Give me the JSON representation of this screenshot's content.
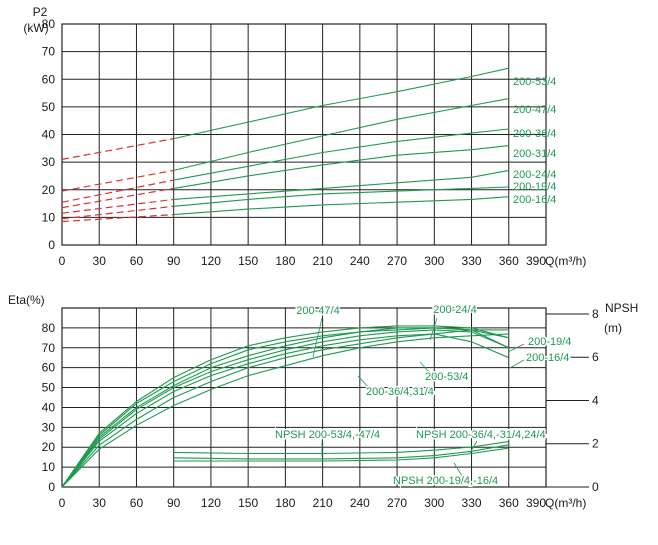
{
  "chart_data": [
    {
      "type": "line",
      "ylabel_line1": "P2",
      "ylabel_line2": "(kW)",
      "xlabel": "Q(m³/h)",
      "xlim": [
        0,
        390
      ],
      "ylim": [
        0,
        80
      ],
      "x_ticks": [
        0,
        30,
        60,
        90,
        120,
        150,
        180,
        210,
        240,
        270,
        300,
        330,
        360,
        390
      ],
      "y_ticks": [
        0,
        10,
        20,
        30,
        40,
        50,
        60,
        70,
        80
      ],
      "grid": true,
      "colors": {
        "solid": "#1f9a4f",
        "dashed": "#d9342b",
        "grid": "#222222"
      },
      "series": [
        {
          "name": "200-53/4",
          "dashed_x": [
            0,
            90
          ],
          "dashed_y": [
            31,
            38.5
          ],
          "x": [
            90,
            150,
            210,
            270,
            330,
            360
          ],
          "y": [
            38.5,
            44.5,
            50.5,
            55.5,
            61,
            64
          ]
        },
        {
          "name": "200-47/4",
          "dashed_x": [
            0,
            90
          ],
          "dashed_y": [
            19.5,
            27
          ],
          "x": [
            90,
            150,
            210,
            270,
            330,
            360
          ],
          "y": [
            27,
            33.5,
            39.5,
            45.5,
            50.5,
            53
          ]
        },
        {
          "name": "200-36/4",
          "dashed_x": [
            0,
            90
          ],
          "dashed_y": [
            15.5,
            23.5
          ],
          "x": [
            90,
            150,
            210,
            270,
            330,
            360
          ],
          "y": [
            23.5,
            28.5,
            33.5,
            37.5,
            40.5,
            42
          ]
        },
        {
          "name": "200-31/4",
          "dashed_x": [
            0,
            90
          ],
          "dashed_y": [
            13.5,
            20.5
          ],
          "x": [
            90,
            150,
            210,
            270,
            330,
            360
          ],
          "y": [
            20.5,
            25,
            29,
            32.5,
            34.5,
            36
          ]
        },
        {
          "name": "200-24/4",
          "dashed_x": [
            0,
            90
          ],
          "dashed_y": [
            11.5,
            16.5
          ],
          "x": [
            90,
            150,
            210,
            270,
            330,
            360
          ],
          "y": [
            16.5,
            18.5,
            20.5,
            22.5,
            24.5,
            27
          ]
        },
        {
          "name": "200-19/4",
          "dashed_x": [
            0,
            90
          ],
          "dashed_y": [
            9.5,
            14
          ],
          "x": [
            90,
            150,
            210,
            270,
            330,
            360
          ],
          "y": [
            14,
            16.5,
            18.5,
            19.5,
            20.5,
            21
          ]
        },
        {
          "name": "200-16/4",
          "dashed_x": [
            0,
            90
          ],
          "dashed_y": [
            8.5,
            11
          ],
          "x": [
            90,
            150,
            210,
            270,
            330,
            360
          ],
          "y": [
            11,
            13,
            14.5,
            15.5,
            16.5,
            17.5
          ]
        }
      ]
    },
    {
      "type": "line",
      "ylabel": "Eta(%)",
      "y2label_line1": "NPSH",
      "y2label_line2": "(m)",
      "xlabel": "Q(m³/h)",
      "xlim": [
        0,
        390
      ],
      "ylim": [
        0,
        90
      ],
      "y2lim": [
        0,
        8
      ],
      "x_ticks": [
        0,
        30,
        60,
        90,
        120,
        150,
        180,
        210,
        240,
        270,
        300,
        330,
        360,
        390
      ],
      "y_ticks": [
        0,
        10,
        20,
        30,
        40,
        50,
        60,
        70,
        80
      ],
      "y2_ticks": [
        0,
        2,
        4,
        6,
        8
      ],
      "grid": true,
      "eta_series": [
        {
          "x": [
            0,
            30,
            60,
            90,
            120,
            150,
            180,
            210,
            240,
            270,
            300,
            330,
            360
          ],
          "y": [
            0,
            27,
            43,
            55,
            64,
            71,
            75,
            78,
            80,
            81,
            81,
            80,
            75
          ]
        },
        {
          "x": [
            0,
            30,
            60,
            90,
            120,
            150,
            180,
            210,
            240,
            270,
            300,
            330,
            360
          ],
          "y": [
            0,
            26,
            42,
            53,
            62,
            69,
            73,
            76,
            78,
            80,
            80,
            79,
            75
          ]
        },
        {
          "x": [
            0,
            30,
            60,
            90,
            120,
            150,
            180,
            210,
            240,
            270,
            300,
            330,
            360
          ],
          "y": [
            0,
            25,
            40,
            51,
            60,
            66,
            71,
            75,
            78,
            79,
            80,
            79,
            70
          ]
        },
        {
          "x": [
            0,
            30,
            60,
            90,
            120,
            150,
            180,
            210,
            240,
            270,
            300,
            330,
            360
          ],
          "y": [
            0,
            24,
            39,
            50,
            58,
            64,
            69,
            73,
            76,
            78,
            79,
            78,
            70
          ]
        },
        {
          "x": [
            0,
            30,
            60,
            90,
            120,
            150,
            180,
            210,
            240,
            270,
            300,
            330,
            360
          ],
          "y": [
            0,
            23,
            37,
            48,
            56,
            62,
            67,
            71,
            74,
            76,
            77,
            73,
            65
          ]
        },
        {
          "x": [
            0,
            30,
            60,
            90,
            120,
            150,
            180,
            210,
            240,
            270,
            300,
            330,
            360
          ],
          "y": [
            0,
            21,
            34,
            45,
            53,
            60,
            65,
            69,
            72,
            75,
            77,
            79,
            79
          ]
        },
        {
          "x": [
            0,
            30,
            60,
            90,
            120,
            150,
            180,
            210,
            240,
            270,
            300,
            330,
            360
          ],
          "y": [
            0,
            19,
            31,
            41,
            49,
            56,
            61,
            66,
            70,
            73,
            75,
            76,
            77
          ]
        }
      ],
      "npsh_series": [
        {
          "x": [
            90,
            150,
            210,
            270,
            300,
            330,
            360
          ],
          "y": [
            1.6,
            1.55,
            1.55,
            1.6,
            1.7,
            1.85,
            2.1
          ]
        },
        {
          "x": [
            90,
            150,
            210,
            270,
            300,
            330,
            360
          ],
          "y": [
            1.35,
            1.3,
            1.3,
            1.35,
            1.45,
            1.65,
            1.95
          ]
        },
        {
          "x": [
            90,
            150,
            210,
            270,
            300,
            330,
            360
          ],
          "y": [
            1.2,
            1.2,
            1.2,
            1.25,
            1.35,
            1.55,
            1.8
          ]
        }
      ],
      "labels": [
        {
          "text": "200-47/4"
        },
        {
          "text": "200-24/4"
        },
        {
          "text": "200-19/4"
        },
        {
          "text": "200-16/4"
        },
        {
          "text": "200-53/4"
        },
        {
          "text": "200-36/4,31/4"
        },
        {
          "text": "NPSH 200-53/4,-47/4"
        },
        {
          "text": "NPSH 200-36/4,-31/4,24/4"
        },
        {
          "text": "NPSH 200-19/4,-16/4"
        }
      ]
    }
  ]
}
